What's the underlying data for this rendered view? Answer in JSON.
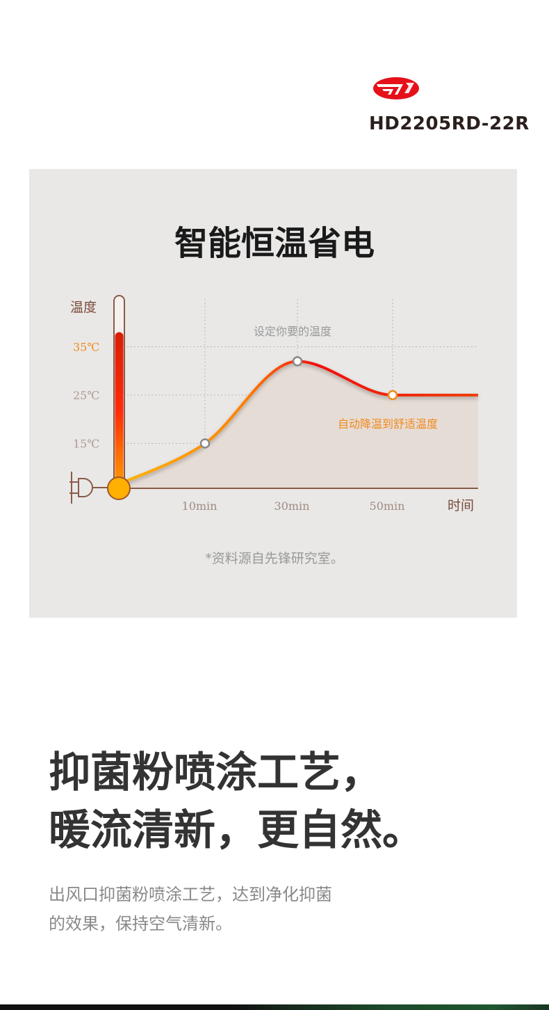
{
  "brand": {
    "model": "HD2205RD-22R",
    "logo_color": "#e5101a"
  },
  "chart_title": "智能恒温省电",
  "chart_data": {
    "type": "line",
    "ylabel": "温度",
    "xlabel": "时间",
    "y_ticks": [
      "15℃",
      "25℃",
      "35℃"
    ],
    "x_ticks": [
      "10min",
      "30min",
      "50min"
    ],
    "highlight_tick": "35℃",
    "series": [
      {
        "x": [
          0,
          10,
          30,
          50,
          60
        ],
        "y": [
          6,
          15,
          32,
          25,
          25
        ]
      }
    ],
    "markers": [
      {
        "x": 10,
        "y": 15
      },
      {
        "x": 30,
        "y": 32
      },
      {
        "x": 50,
        "y": 25,
        "accent": true
      }
    ],
    "thermometer_level": 0.85,
    "annotations": {
      "peak": "设定你要的温度",
      "settle": "自动降温到舒适温度"
    },
    "grid": true,
    "colors": {
      "curve_start": "#ffb400",
      "curve_peak": "#f01010",
      "curve_end": "#f04010",
      "axis": "#8a5a48",
      "accent": "#f08a1c",
      "fill": "#e6dcd6"
    }
  },
  "source_note": "*资料源自先锋研究室。",
  "headline": [
    "抑菌粉喷涂工艺，",
    "暖流清新，更自然。"
  ],
  "description": [
    "出风口抑菌粉喷涂工艺，达到净化抑菌",
    "的效果，保持空气清新。"
  ]
}
